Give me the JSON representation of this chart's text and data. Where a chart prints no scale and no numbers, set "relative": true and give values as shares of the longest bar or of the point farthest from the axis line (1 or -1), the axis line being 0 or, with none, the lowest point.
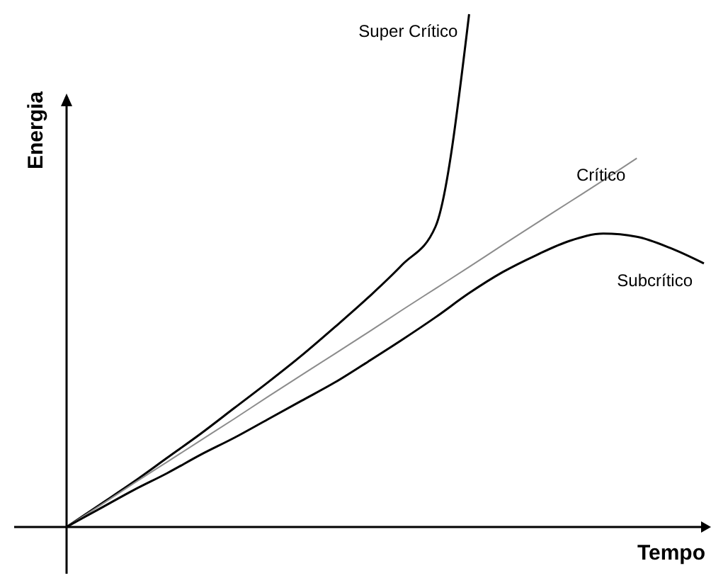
{
  "chart_data": {
    "type": "line",
    "relative": true,
    "xlabel": "Tempo",
    "ylabel": "Energia",
    "categories": [
      null,
      null,
      null,
      null,
      null,
      null,
      null,
      null,
      null,
      null,
      null,
      null,
      null,
      null,
      null,
      null,
      null,
      null,
      null,
      null
    ],
    "series": [
      {
        "name": "Super Crítico",
        "color": "#000000",
        "values": [
          0,
          0.044,
          0.088,
          0.135,
          0.182,
          0.232,
          0.282,
          0.334,
          0.39,
          0.448,
          0.511,
          0.586,
          1,
          null,
          null,
          null,
          null,
          null,
          null,
          null
        ]
      },
      {
        "name": "Crítico",
        "color": "#8c8c8c",
        "values": [
          0,
          0.042,
          0.085,
          0.127,
          0.169,
          0.211,
          0.254,
          0.296,
          0.338,
          0.38,
          0.423,
          0.465,
          0.507,
          0.55,
          0.592,
          0.634,
          0.676,
          0.719,
          null,
          null
        ]
      },
      {
        "name": "Subcrítico",
        "color": "#000000",
        "values": [
          0,
          0.036,
          0.072,
          0.105,
          0.141,
          0.174,
          0.21,
          0.246,
          0.282,
          0.323,
          0.365,
          0.409,
          0.456,
          0.497,
          0.53,
          0.558,
          0.572,
          0.566,
          0.544,
          0.514
        ]
      }
    ],
    "legend": false,
    "marker": "none",
    "line_style": "solid",
    "grid": false
  }
}
